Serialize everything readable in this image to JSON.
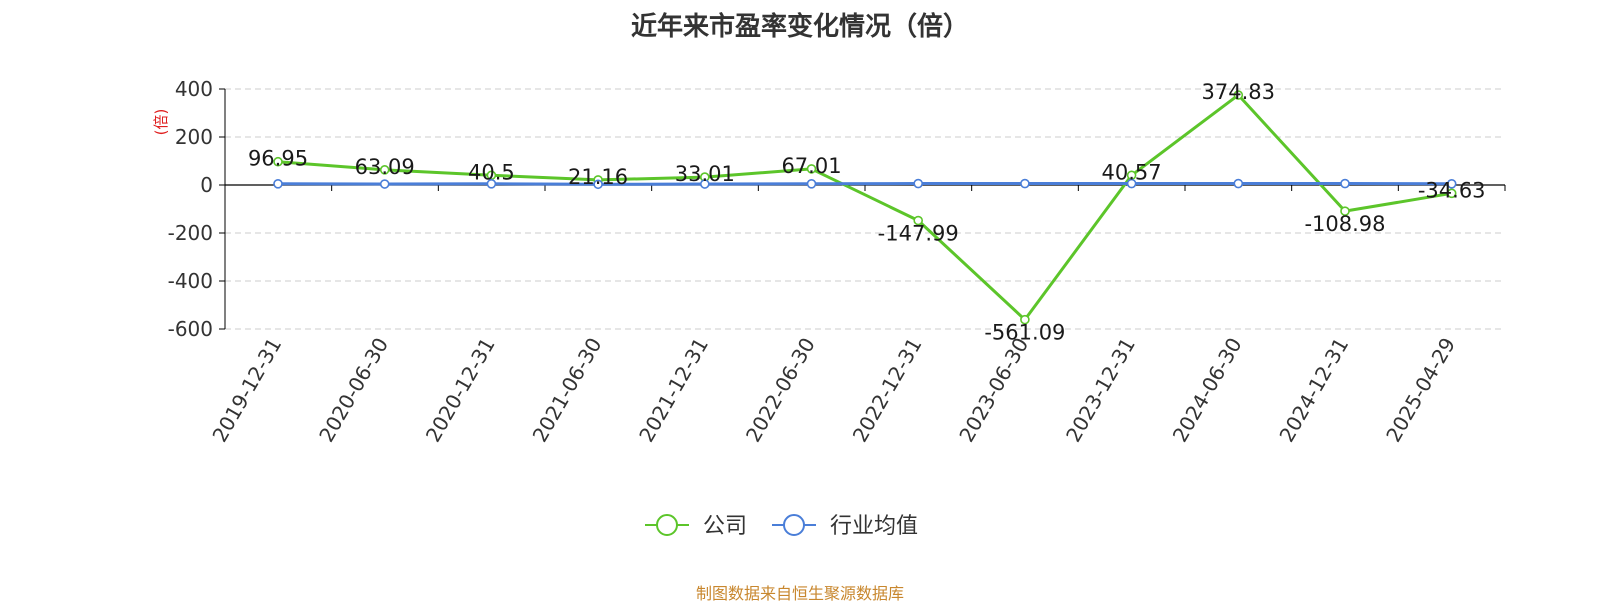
{
  "chart_data": {
    "type": "line",
    "title": "近年来市盈率变化情况（倍）",
    "ylabel": "(倍)",
    "categories": [
      "2019-12-31",
      "2020-06-30",
      "2020-12-31",
      "2021-06-30",
      "2021-12-31",
      "2022-06-30",
      "2022-12-31",
      "2023-06-30",
      "2023-12-31",
      "2024-06-30",
      "2024-12-31",
      "2025-04-29"
    ],
    "ylim": [
      -600,
      400
    ],
    "yticks": [
      400,
      200,
      0,
      -200,
      -400,
      -600
    ],
    "grid": true,
    "legend_position": "bottom",
    "series": [
      {
        "name": "公司",
        "color": "#5cc52a",
        "values": [
          96.95,
          63.09,
          40.5,
          21.16,
          33.01,
          67.01,
          -147.99,
          -561.09,
          40.57,
          374.83,
          -108.98,
          -34.63
        ],
        "labels": [
          "96.95",
          "63.09",
          "40.5",
          "21.16",
          "33.01",
          "67.01",
          "-147.99",
          "-561.09",
          "40.57",
          "374.83",
          "-108.98",
          "-34.63"
        ]
      },
      {
        "name": "行业均值",
        "color": "#4a7ed8",
        "values": [
          5,
          4,
          5,
          3,
          4,
          5,
          6,
          6,
          6,
          6,
          6,
          5
        ]
      }
    ]
  },
  "source_text": "制图数据来自恒生聚源数据库",
  "source_color": "#c8872e"
}
